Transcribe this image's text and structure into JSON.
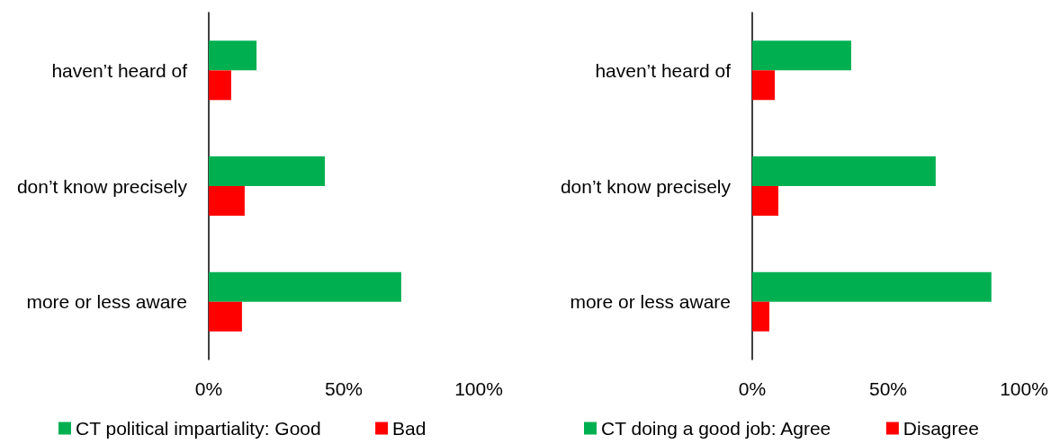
{
  "chart_data": [
    {
      "type": "bar",
      "orientation": "horizontal",
      "categories": [
        "haven’t heard of",
        "don’t know precisely",
        "more or less aware"
      ],
      "series": [
        {
          "name": "CT political impartiality: Good",
          "color": "#00b050",
          "values": [
            17.7,
            43,
            71.3
          ]
        },
        {
          "name": "Bad",
          "color": "#ff0000",
          "values": [
            8.3,
            13.3,
            12.3
          ]
        }
      ],
      "xlim": [
        0,
        100
      ],
      "xticks": [
        {
          "value": 0,
          "label": "0%"
        },
        {
          "value": 50,
          "label": "50%"
        },
        {
          "value": 100,
          "label": "100%"
        }
      ],
      "grid": false,
      "legend": "bottom"
    },
    {
      "type": "bar",
      "orientation": "horizontal",
      "categories": [
        "haven’t heard of",
        "don’t know precisely",
        "more or less aware"
      ],
      "series": [
        {
          "name": "CT doing a good job: Agree",
          "color": "#00b050",
          "values": [
            36.4,
            67.5,
            88
          ]
        },
        {
          "name": "Disagree",
          "color": "#ff0000",
          "values": [
            8.3,
            9.6,
            6.3
          ]
        }
      ],
      "xlim": [
        0,
        100
      ],
      "xticks": [
        {
          "value": 0,
          "label": "0%"
        },
        {
          "value": 50,
          "label": "50%"
        },
        {
          "value": 100,
          "label": "100%"
        }
      ],
      "grid": false,
      "legend": "bottom"
    }
  ]
}
